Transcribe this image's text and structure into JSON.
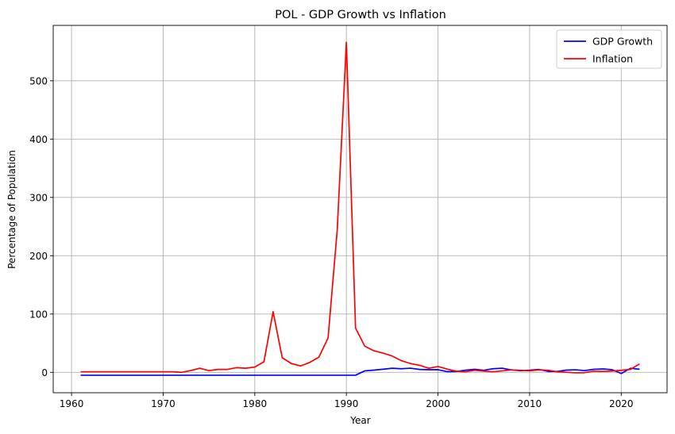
{
  "chart_data": {
    "type": "line",
    "title": "POL - GDP Growth vs Inflation",
    "xlabel": "Year",
    "ylabel": "Percentage of Population",
    "xlim": [
      1958,
      2025
    ],
    "ylim": [
      -35,
      595
    ],
    "xticks": [
      1960,
      1970,
      1980,
      1990,
      2000,
      2010,
      2020
    ],
    "yticks": [
      0,
      100,
      200,
      300,
      400,
      500
    ],
    "grid": true,
    "legend_position": "top-right",
    "series": [
      {
        "name": "GDP Growth",
        "color": "#0000ff",
        "x": [
          1961,
          1962,
          1963,
          1964,
          1965,
          1966,
          1967,
          1968,
          1969,
          1970,
          1971,
          1972,
          1973,
          1974,
          1975,
          1976,
          1977,
          1978,
          1979,
          1980,
          1981,
          1982,
          1983,
          1984,
          1985,
          1986,
          1987,
          1988,
          1989,
          1990,
          1991,
          1992,
          1993,
          1994,
          1995,
          1996,
          1997,
          1998,
          1999,
          2000,
          2001,
          2002,
          2003,
          2004,
          2005,
          2006,
          2007,
          2008,
          2009,
          2010,
          2011,
          2012,
          2013,
          2014,
          2015,
          2016,
          2017,
          2018,
          2019,
          2020,
          2021,
          2022
        ],
        "values": [
          -5,
          -5,
          -5,
          -5,
          -5,
          -5,
          -5,
          -5,
          -5,
          -5,
          -5,
          -5,
          -5,
          -5,
          -5,
          -5,
          -5,
          -5,
          -5,
          -5,
          -5,
          -5,
          -5,
          -5,
          -5,
          -5,
          -5,
          -5,
          -5,
          -5,
          -5,
          2.5,
          3.8,
          5.3,
          7,
          6.2,
          7.1,
          5,
          4.5,
          4.6,
          1.2,
          1.4,
          3.6,
          5.1,
          3.5,
          6.2,
          7,
          4.2,
          2.8,
          3.7,
          5,
          1.6,
          1.4,
          3.8,
          4.4,
          3,
          5.1,
          5.9,
          4.5,
          -2,
          6.9,
          5.3
        ]
      },
      {
        "name": "Inflation",
        "color": "#ff0000",
        "x": [
          1961,
          1962,
          1963,
          1964,
          1965,
          1966,
          1967,
          1968,
          1969,
          1970,
          1971,
          1972,
          1973,
          1974,
          1975,
          1976,
          1977,
          1978,
          1979,
          1980,
          1981,
          1982,
          1983,
          1984,
          1985,
          1986,
          1987,
          1988,
          1989,
          1990,
          1991,
          1992,
          1993,
          1994,
          1995,
          1996,
          1997,
          1998,
          1999,
          2000,
          2001,
          2002,
          2003,
          2004,
          2005,
          2006,
          2007,
          2008,
          2009,
          2010,
          2011,
          2012,
          2013,
          2014,
          2015,
          2016,
          2017,
          2018,
          2019,
          2020,
          2021,
          2022
        ],
        "values": [
          1,
          1,
          1,
          1,
          1,
          1,
          1,
          1,
          1,
          1,
          1,
          0,
          3,
          7,
          3,
          5,
          5,
          8,
          7,
          9,
          18,
          104,
          25,
          15,
          11,
          17,
          26,
          59,
          244,
          566,
          76,
          45,
          37,
          33,
          28,
          20,
          15,
          12,
          7,
          10,
          5.5,
          1.9,
          0.8,
          3.5,
          2.1,
          1,
          2.5,
          4.2,
          3.5,
          2.6,
          4.3,
          3.7,
          0.9,
          0.1,
          -0.9,
          -0.6,
          2,
          1.6,
          2.3,
          3.4,
          5.1,
          14.4
        ]
      }
    ]
  }
}
